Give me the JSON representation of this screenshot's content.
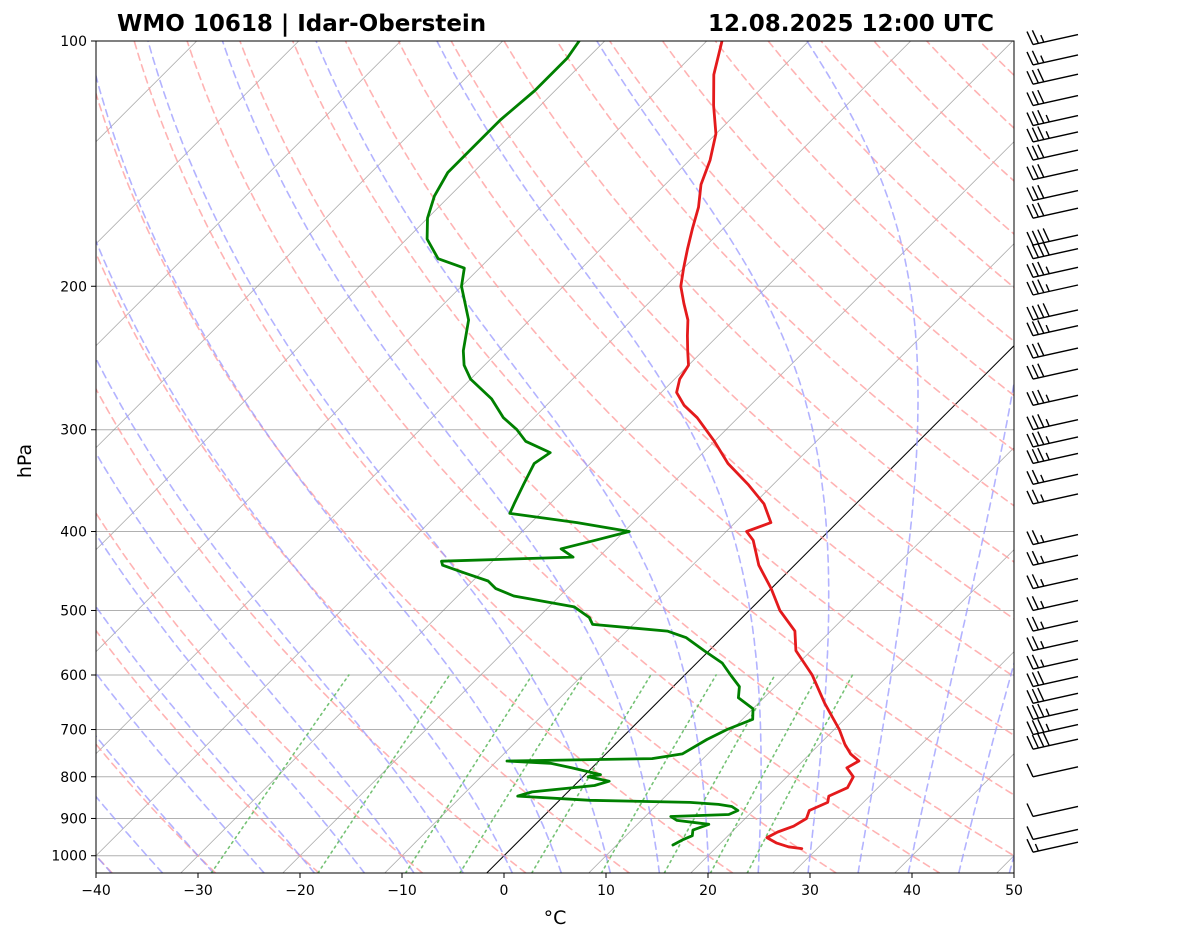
{
  "chart_data": {
    "type": "skew-t log-p sounding",
    "title_left": "WMO 10618 | Idar-Oberstein",
    "title_right": "12.08.2025 12:00 UTC",
    "xlabel": "°C",
    "ylabel": "hPa",
    "xlim": [
      -40,
      50
    ],
    "ylim_hpa": [
      1050,
      100
    ],
    "x_ticks": [
      -40,
      -30,
      -20,
      -10,
      0,
      10,
      20,
      30,
      40,
      50
    ],
    "x_tick_labels": [
      "−40",
      "−30",
      "−20",
      "−10",
      "0",
      "10",
      "20",
      "30",
      "40",
      "50"
    ],
    "p_ticks": [
      100,
      200,
      300,
      400,
      500,
      600,
      700,
      800,
      900,
      1000
    ],
    "p_tick_labels": [
      "100",
      "200",
      "300",
      "400",
      "500",
      "600",
      "700",
      "800",
      "900",
      "1000"
    ],
    "colors": {
      "temperature": "#e41a1c",
      "dewpoint": "#008000",
      "dry_adiabats": "#ff9999",
      "moist_adiabats": "#9999ff",
      "mixing_ratio": "#66bb66",
      "isotherms": "#888888",
      "zero_isotherm": "#000000"
    },
    "series": [
      {
        "name": "temperature",
        "points": [
          [
            980,
            28.5
          ],
          [
            975,
            27.0
          ],
          [
            965,
            25.5
          ],
          [
            950,
            24.0
          ],
          [
            935,
            24.5
          ],
          [
            920,
            25.5
          ],
          [
            900,
            26.0
          ],
          [
            880,
            25.5
          ],
          [
            860,
            26.5
          ],
          [
            845,
            26.0
          ],
          [
            825,
            27.0
          ],
          [
            800,
            26.5
          ],
          [
            780,
            25.0
          ],
          [
            765,
            25.5
          ],
          [
            750,
            24.0
          ],
          [
            730,
            22.5
          ],
          [
            700,
            20.5
          ],
          [
            650,
            16.5
          ],
          [
            600,
            12.5
          ],
          [
            560,
            8.5
          ],
          [
            530,
            6.5
          ],
          [
            500,
            3.0
          ],
          [
            470,
            0.0
          ],
          [
            440,
            -3.5
          ],
          [
            410,
            -6.5
          ],
          [
            400,
            -8.0
          ],
          [
            390,
            -6.5
          ],
          [
            370,
            -9.0
          ],
          [
            350,
            -12.5
          ],
          [
            330,
            -16.5
          ],
          [
            310,
            -20.0
          ],
          [
            290,
            -24.0
          ],
          [
            280,
            -26.5
          ],
          [
            270,
            -28.5
          ],
          [
            260,
            -29.5
          ],
          [
            250,
            -30.0
          ],
          [
            240,
            -31.5
          ],
          [
            230,
            -33.0
          ],
          [
            220,
            -34.5
          ],
          [
            210,
            -36.5
          ],
          [
            200,
            -38.5
          ],
          [
            190,
            -40.0
          ],
          [
            180,
            -41.5
          ],
          [
            170,
            -43.0
          ],
          [
            160,
            -44.5
          ],
          [
            150,
            -46.5
          ],
          [
            140,
            -48.0
          ],
          [
            130,
            -50.0
          ],
          [
            120,
            -53.0
          ],
          [
            110,
            -56.0
          ],
          [
            100,
            -58.5
          ]
        ]
      },
      {
        "name": "dewpoint",
        "points": [
          [
            970,
            15.5
          ],
          [
            955,
            16.0
          ],
          [
            945,
            16.5
          ],
          [
            930,
            16.0
          ],
          [
            915,
            17.0
          ],
          [
            905,
            13.5
          ],
          [
            895,
            12.5
          ],
          [
            890,
            18.0
          ],
          [
            880,
            18.5
          ],
          [
            870,
            17.5
          ],
          [
            865,
            16.0
          ],
          [
            860,
            13.0
          ],
          [
            855,
            3.0
          ],
          [
            845,
            -4.5
          ],
          [
            835,
            -3.5
          ],
          [
            820,
            2.0
          ],
          [
            810,
            3.0
          ],
          [
            800,
            0.5
          ],
          [
            795,
            1.5
          ],
          [
            780,
            -2.0
          ],
          [
            770,
            -4.5
          ],
          [
            765,
            -9.0
          ],
          [
            760,
            5.0
          ],
          [
            750,
            7.5
          ],
          [
            720,
            8.5
          ],
          [
            700,
            9.5
          ],
          [
            680,
            11.0
          ],
          [
            660,
            10.0
          ],
          [
            640,
            7.5
          ],
          [
            620,
            6.5
          ],
          [
            600,
            4.5
          ],
          [
            580,
            2.5
          ],
          [
            560,
            -0.5
          ],
          [
            540,
            -3.5
          ],
          [
            530,
            -6.0
          ],
          [
            520,
            -14.0
          ],
          [
            510,
            -15.0
          ],
          [
            495,
            -17.5
          ],
          [
            480,
            -24.5
          ],
          [
            470,
            -27.0
          ],
          [
            460,
            -28.5
          ],
          [
            450,
            -31.5
          ],
          [
            440,
            -34.5
          ],
          [
            435,
            -35.0
          ],
          [
            430,
            -22.5
          ],
          [
            420,
            -24.5
          ],
          [
            410,
            -22.0
          ],
          [
            400,
            -19.5
          ],
          [
            390,
            -25.5
          ],
          [
            380,
            -33.0
          ],
          [
            370,
            -33.5
          ],
          [
            350,
            -34.5
          ],
          [
            330,
            -35.5
          ],
          [
            320,
            -35.0
          ],
          [
            310,
            -38.5
          ],
          [
            300,
            -40.5
          ],
          [
            290,
            -43.0
          ],
          [
            275,
            -46.0
          ],
          [
            260,
            -50.0
          ],
          [
            250,
            -52.0
          ],
          [
            240,
            -53.5
          ],
          [
            220,
            -56.0
          ],
          [
            200,
            -60.0
          ],
          [
            190,
            -61.5
          ],
          [
            185,
            -65.0
          ],
          [
            175,
            -68.0
          ],
          [
            165,
            -70.0
          ],
          [
            155,
            -71.5
          ],
          [
            145,
            -72.5
          ],
          [
            135,
            -72.5
          ],
          [
            125,
            -72.5
          ],
          [
            115,
            -72.0
          ],
          [
            105,
            -72.0
          ],
          [
            100,
            -72.5
          ]
        ]
      }
    ],
    "wind_barbs": [
      {
        "p": 990,
        "speed_kt": 15
      },
      {
        "p": 955,
        "speed_kt": 10
      },
      {
        "p": 895,
        "speed_kt": 10
      },
      {
        "p": 800,
        "speed_kt": 10
      },
      {
        "p": 740,
        "speed_kt": 40
      },
      {
        "p": 710,
        "speed_kt": 35
      },
      {
        "p": 680,
        "speed_kt": 35
      },
      {
        "p": 650,
        "speed_kt": 30
      },
      {
        "p": 620,
        "speed_kt": 30
      },
      {
        "p": 590,
        "speed_kt": 25
      },
      {
        "p": 560,
        "speed_kt": 25
      },
      {
        "p": 530,
        "speed_kt": 25
      },
      {
        "p": 500,
        "speed_kt": 25
      },
      {
        "p": 470,
        "speed_kt": 25
      },
      {
        "p": 440,
        "speed_kt": 25
      },
      {
        "p": 415,
        "speed_kt": 25
      },
      {
        "p": 370,
        "speed_kt": 25
      },
      {
        "p": 350,
        "speed_kt": 25
      },
      {
        "p": 330,
        "speed_kt": 35
      },
      {
        "p": 315,
        "speed_kt": 35
      },
      {
        "p": 300,
        "speed_kt": 35
      },
      {
        "p": 280,
        "speed_kt": 35
      },
      {
        "p": 260,
        "speed_kt": 30
      },
      {
        "p": 245,
        "speed_kt": 30
      },
      {
        "p": 230,
        "speed_kt": 35
      },
      {
        "p": 220,
        "speed_kt": 40
      },
      {
        "p": 205,
        "speed_kt": 35
      },
      {
        "p": 195,
        "speed_kt": 35
      },
      {
        "p": 185,
        "speed_kt": 40
      },
      {
        "p": 178,
        "speed_kt": 40
      },
      {
        "p": 165,
        "speed_kt": 30
      },
      {
        "p": 157,
        "speed_kt": 30
      },
      {
        "p": 148,
        "speed_kt": 30
      },
      {
        "p": 140,
        "speed_kt": 30
      },
      {
        "p": 133,
        "speed_kt": 35
      },
      {
        "p": 127,
        "speed_kt": 35
      },
      {
        "p": 120,
        "speed_kt": 30
      },
      {
        "p": 113,
        "speed_kt": 30
      },
      {
        "p": 107,
        "speed_kt": 25
      },
      {
        "p": 101,
        "speed_kt": 25
      }
    ]
  }
}
